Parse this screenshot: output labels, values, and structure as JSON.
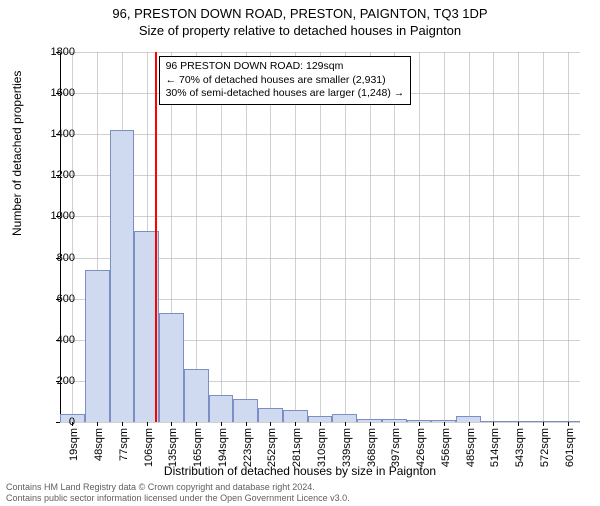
{
  "title_main": "96, PRESTON DOWN ROAD, PRESTON, PAIGNTON, TQ3 1DP",
  "title_sub": "Size of property relative to detached houses in Paignton",
  "ylabel": "Number of detached properties",
  "xlabel": "Distribution of detached houses by size in Paignton",
  "chart": {
    "type": "histogram",
    "background_color": "#ffffff",
    "grid_color": "#b0b0b0",
    "bar_fill": "#cfd9ef",
    "bar_border": "#7a8fc4",
    "marker_color": "#ff0000",
    "ylim": [
      0,
      1800
    ],
    "ytick_step": 200,
    "yticks": [
      0,
      200,
      400,
      600,
      800,
      1000,
      1200,
      1400,
      1600,
      1800
    ],
    "xticks": [
      "19sqm",
      "48sqm",
      "77sqm",
      "106sqm",
      "135sqm",
      "165sqm",
      "194sqm",
      "223sqm",
      "252sqm",
      "281sqm",
      "310sqm",
      "339sqm",
      "368sqm",
      "397sqm",
      "426sqm",
      "456sqm",
      "485sqm",
      "514sqm",
      "543sqm",
      "572sqm",
      "601sqm"
    ],
    "bars": [
      40,
      740,
      1420,
      930,
      530,
      260,
      130,
      110,
      70,
      60,
      30,
      40,
      15,
      15,
      10,
      10,
      30,
      0,
      0,
      0,
      5
    ],
    "marker_bin_index": 3,
    "marker_position": 0.82
  },
  "annotation": {
    "line1": "96 PRESTON DOWN ROAD: 129sqm",
    "line2": "← 70% of detached houses are smaller (2,931)",
    "line3": "30% of semi-detached houses are larger (1,248) →"
  },
  "footer_line1": "Contains HM Land Registry data © Crown copyright and database right 2024.",
  "footer_line2": "Contains public sector information licensed under the Open Government Licence v3.0."
}
